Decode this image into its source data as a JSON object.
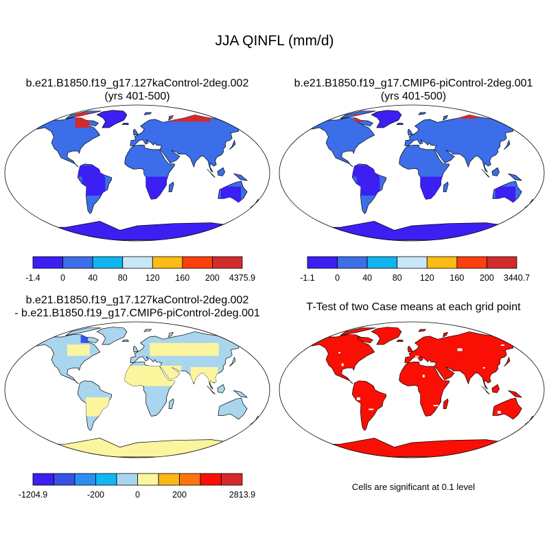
{
  "title": "JJA QINFL (mm/d)",
  "panels": [
    {
      "title": "b.e21.B1850.f19_g17.127kaControl-2deg.002",
      "subtitle": "(yrs 401-500)"
    },
    {
      "title": "b.e21.B1850.f19_g17.CMIP6-piControl-2deg.001",
      "subtitle": "(yrs 401-500)"
    },
    {
      "title": "b.e21.B1850.f19_g17.127kaControl-2deg.002",
      "subtitle": "- b.e21.B1850.f19_g17.CMIP6-piControl-2deg.001"
    },
    {
      "title": "T-Test of two Case means at each grid point"
    }
  ],
  "colorbars": [
    {
      "colors": [
        "#3c1ff2",
        "#3b6ee8",
        "#10b4f0",
        "#c8e6f6",
        "#fdbb16",
        "#fb3f0e",
        "#d32a2c"
      ],
      "labels": [
        "-1.4",
        "0",
        "40",
        "80",
        "120",
        "160",
        "200",
        "4375.9"
      ]
    },
    {
      "colors": [
        "#3c1ff2",
        "#3b6ee8",
        "#10b4f0",
        "#c8e6f6",
        "#fdbb16",
        "#fb3f0e",
        "#d32a2c"
      ],
      "labels": [
        "-1.1",
        "0",
        "40",
        "80",
        "120",
        "160",
        "200",
        "3440.7"
      ]
    },
    {
      "colors": [
        "#3c1ff2",
        "#3752e4",
        "#2b8ef0",
        "#12b6f2",
        "#a9d6ee",
        "#fbf59e",
        "#fcb715",
        "#fb760e",
        "#fa0f05",
        "#d42a2c"
      ],
      "labels": [
        "-1204.9",
        "",
        "",
        "-200",
        "",
        "0",
        "",
        "200",
        "",
        "",
        "2813.9"
      ]
    }
  ],
  "panel_colors": {
    "ocean": "#ffffff",
    "land_case": "#3b6ee8",
    "land_case_lowest": "#3c1ff2",
    "land_case_highlight": "#d32a2c",
    "land_diff_main": "#a9d6ee",
    "land_diff_alt": "#fbf59e",
    "significant": "#fa0f05"
  },
  "note": "Cells are significant at 0.1 level"
}
